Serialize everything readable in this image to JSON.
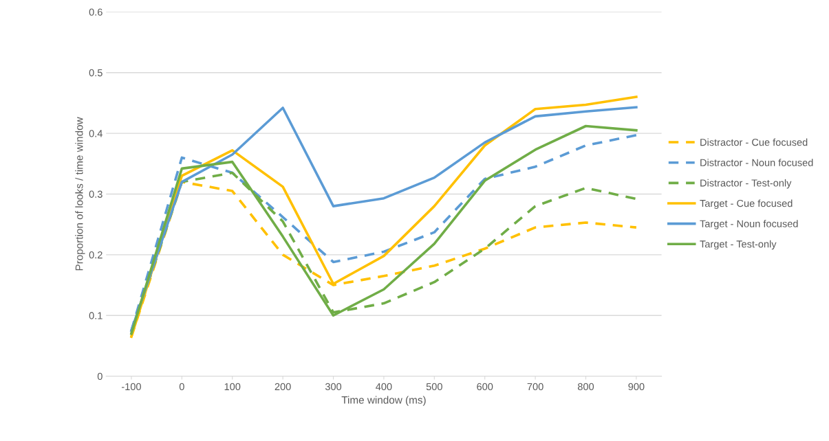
{
  "chart_data": {
    "type": "line",
    "xlabel": "Time window (ms)",
    "ylabel": "Proportion of looks / time window",
    "categories": [
      "-100",
      "0",
      "100",
      "200",
      "300",
      "400",
      "500",
      "600",
      "700",
      "800",
      "900"
    ],
    "ylim": [
      0,
      0.6
    ],
    "yticks": [
      0,
      0.1,
      0.2,
      0.3,
      0.4,
      0.5,
      0.6
    ],
    "grid": "y",
    "legend": "right",
    "marker": "none",
    "series": [
      {
        "name": "Distractor - Cue focused",
        "color": "#ffc000",
        "line_style": "dashed",
        "values": [
          0.065,
          0.32,
          0.305,
          0.2,
          0.15,
          0.165,
          0.182,
          0.21,
          0.245,
          0.253,
          0.245
        ]
      },
      {
        "name": "Distractor - Noun focused",
        "color": "#5b9bd5",
        "line_style": "dashed",
        "values": [
          0.075,
          0.36,
          0.335,
          0.262,
          0.188,
          0.205,
          0.237,
          0.325,
          0.345,
          0.38,
          0.397
        ]
      },
      {
        "name": "Distractor - Test-only",
        "color": "#70ad47",
        "line_style": "dashed",
        "values": [
          0.07,
          0.32,
          0.335,
          0.255,
          0.105,
          0.12,
          0.155,
          0.21,
          0.28,
          0.31,
          0.292
        ]
      },
      {
        "name": "Target - Cue focused",
        "color": "#ffc000",
        "line_style": "solid",
        "values": [
          0.065,
          0.33,
          0.372,
          0.312,
          0.152,
          0.198,
          0.28,
          0.38,
          0.44,
          0.447,
          0.46
        ]
      },
      {
        "name": "Target - Noun focused",
        "color": "#5b9bd5",
        "line_style": "solid",
        "values": [
          0.075,
          0.32,
          0.365,
          0.442,
          0.28,
          0.293,
          0.327,
          0.385,
          0.428,
          0.436,
          0.443
        ]
      },
      {
        "name": "Target - Test-only",
        "color": "#70ad47",
        "line_style": "solid",
        "values": [
          0.07,
          0.342,
          0.353,
          0.23,
          0.1,
          0.143,
          0.218,
          0.322,
          0.373,
          0.412,
          0.405
        ]
      }
    ]
  }
}
